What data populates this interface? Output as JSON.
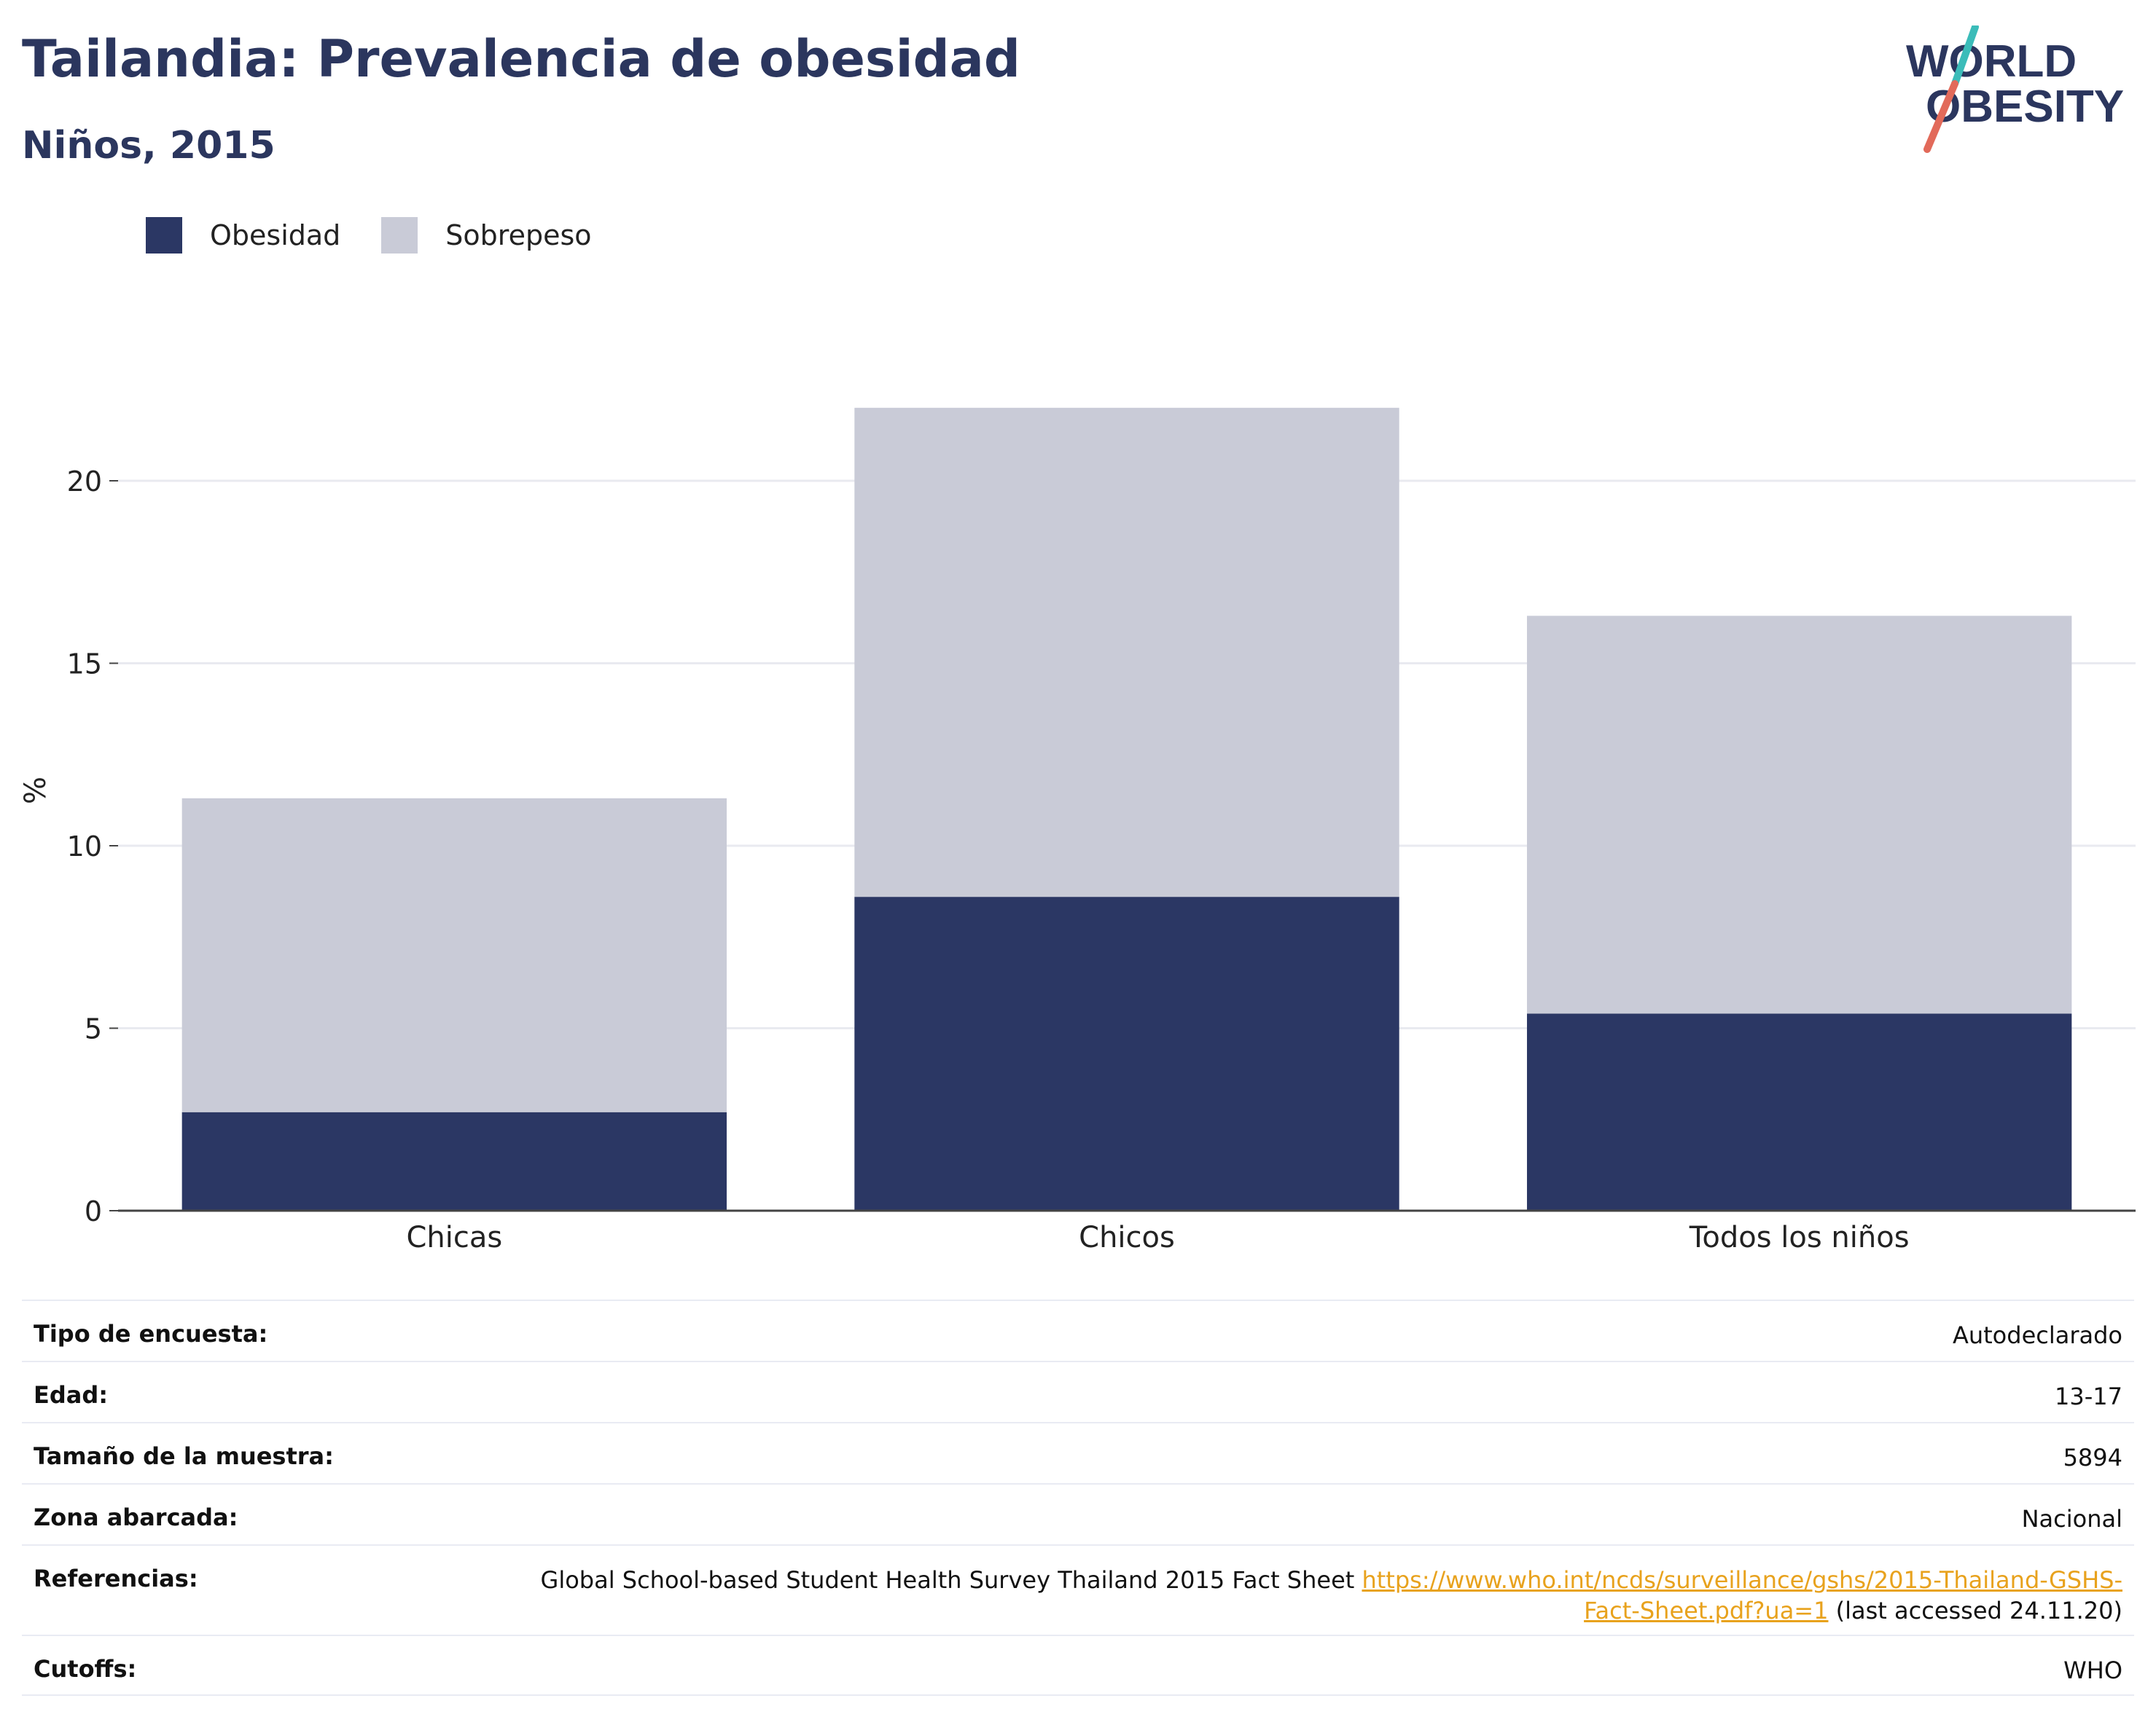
{
  "header": {
    "title": "Tailandia: Prevalencia de obesidad",
    "subtitle": "Niños, 2015"
  },
  "logo": {
    "line1": "WORLD",
    "line2": "OBESITY"
  },
  "colors": {
    "obesity": "#2b3764",
    "overweight": "#c9cbd7",
    "text": "#2b365e",
    "accent_teal": "#3bbcb9",
    "accent_red": "#e26a5a",
    "link": "#e8a21d"
  },
  "chart_data": {
    "type": "bar",
    "stacked": true,
    "categories": [
      "Chicas",
      "Chicos",
      "Todos los niños"
    ],
    "series": [
      {
        "name": "Obesidad",
        "values": [
          2.7,
          8.6,
          5.4
        ]
      },
      {
        "name": "Sobrepeso",
        "values": [
          8.6,
          13.4,
          10.9
        ]
      }
    ],
    "ylabel": "%",
    "ylim": [
      0,
      22
    ],
    "yticks": [
      0,
      5,
      10,
      15,
      20
    ],
    "grid": true,
    "legend": "top-left"
  },
  "info": {
    "survey_type": {
      "label": "Tipo de encuesta:",
      "value": "Autodeclarado"
    },
    "age": {
      "label": "Edad:",
      "value": "13-17"
    },
    "sample_size": {
      "label": "Tamaño de la muestra:",
      "value": "5894"
    },
    "area": {
      "label": "Zona abarcada:",
      "value": "Nacional"
    },
    "references": {
      "label": "Referencias:",
      "text": "Global School-based Student Health Survey Thailand 2015 Fact Sheet",
      "url": "https://www.who.int/ncds/surveillance/gshs/2015-Thailand-GSHS-Fact-Sheet.pdf?ua=1",
      "suffix": "(last accessed 24.11.20)"
    },
    "cutoffs": {
      "label": "Cutoffs:",
      "value": "WHO"
    }
  }
}
